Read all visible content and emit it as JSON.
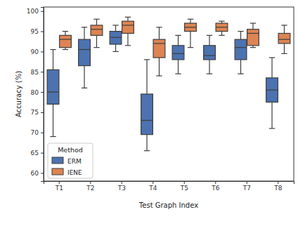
{
  "chart_data": {
    "type": "box",
    "xlabel": "Test Graph Index",
    "ylabel": "Accuracy (%)",
    "categories": [
      "T1",
      "T2",
      "T3",
      "T4",
      "T5",
      "T6",
      "T7",
      "T8"
    ],
    "series": [
      {
        "name": "ERM",
        "color": "#4c72b0",
        "values": [
          {
            "min": 69,
            "q1": 77,
            "median": 80,
            "q3": 85.5,
            "max": 90.5
          },
          {
            "min": 81,
            "q1": 86.5,
            "median": 90.5,
            "q3": 93,
            "max": 96
          },
          {
            "min": 90,
            "q1": 91.8,
            "median": 93.5,
            "q3": 95,
            "max": 96.5
          },
          {
            "min": 65.5,
            "q1": 69.5,
            "median": 73,
            "q3": 79.5,
            "max": 88
          },
          {
            "min": 84.5,
            "q1": 88,
            "median": 89.5,
            "q3": 91.5,
            "max": 94
          },
          {
            "min": 84.5,
            "q1": 88,
            "median": 89,
            "q3": 91.5,
            "max": 94
          },
          {
            "min": 84.5,
            "q1": 88,
            "median": 91,
            "q3": 93,
            "max": 95
          },
          {
            "min": 71,
            "q1": 77.5,
            "median": 80.5,
            "q3": 83.5,
            "max": 88.5
          }
        ]
      },
      {
        "name": "IENE",
        "color": "#dd8452",
        "values": [
          {
            "min": 90.5,
            "q1": 91,
            "median": 93,
            "q3": 94,
            "max": 95
          },
          {
            "min": 91,
            "q1": 94,
            "median": 95.5,
            "q3": 96.5,
            "max": 98
          },
          {
            "min": 91.5,
            "q1": 94.5,
            "median": 96.5,
            "q3": 97.5,
            "max": 98.5
          },
          {
            "min": 84,
            "q1": 88.5,
            "median": 92,
            "q3": 93,
            "max": 96
          },
          {
            "min": 91,
            "q1": 95,
            "median": 96,
            "q3": 97,
            "max": 98
          },
          {
            "min": 94,
            "q1": 95,
            "median": 96,
            "q3": 97,
            "max": 97.5
          },
          {
            "min": 91,
            "q1": 91.5,
            "median": 94.5,
            "q3": 95.5,
            "max": 97
          },
          {
            "min": 89.5,
            "q1": 92,
            "median": 93,
            "q3": 94.5,
            "max": 96.5
          }
        ]
      }
    ],
    "ylim": [
      58,
      101
    ],
    "yticks": [
      60,
      65,
      70,
      75,
      80,
      85,
      90,
      95,
      100
    ],
    "grid": false,
    "legend": "lower left",
    "legend_title": "Method"
  }
}
